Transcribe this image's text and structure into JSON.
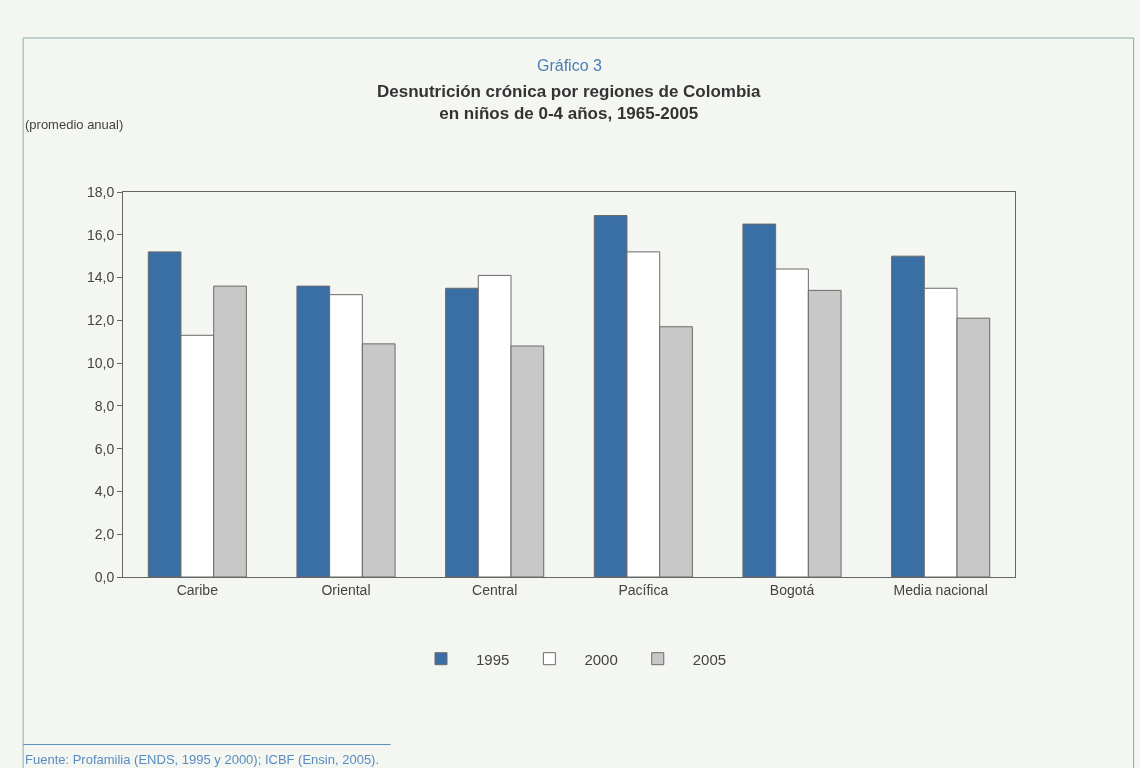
{
  "chart_data": {
    "type": "bar",
    "title": "Gráfico 3",
    "subtitle": "Desnutrición crónica por regiones de Colombia\nen niños de 0-4 años, 1965-2005",
    "ylabel": "(promedio anual)",
    "categories": [
      "Caribe",
      "Oriental",
      "Central",
      "Pacífica",
      "Bogotá",
      "Media nacional"
    ],
    "series": [
      {
        "name": "1995",
        "color": "#3a6fa5",
        "values": [
          15.2,
          13.6,
          13.5,
          16.9,
          16.5,
          15.0
        ]
      },
      {
        "name": "2000",
        "color": "#ffffff",
        "values": [
          11.3,
          13.2,
          14.1,
          15.2,
          14.4,
          13.5
        ]
      },
      {
        "name": "2005",
        "color": "#c8c8c8",
        "values": [
          13.6,
          10.9,
          10.8,
          11.7,
          13.4,
          12.1
        ]
      }
    ],
    "ylim": [
      0,
      18
    ],
    "yticks": [
      {
        "value": 0,
        "label": "0,0"
      },
      {
        "value": 2,
        "label": "2,0"
      },
      {
        "value": 4,
        "label": "4,0"
      },
      {
        "value": 6,
        "label": "6,0"
      },
      {
        "value": 8,
        "label": "8,0"
      },
      {
        "value": 10,
        "label": "10,0"
      },
      {
        "value": 12,
        "label": "12,0"
      },
      {
        "value": 14,
        "label": "14,0"
      },
      {
        "value": 16,
        "label": "16,0"
      },
      {
        "value": 18,
        "label": "18,0"
      }
    ],
    "grid": false,
    "legend": "bottom",
    "annotations": [
      "Fuente: Profamilia (ENDS, 1995 y 2000); ICBF (Ensin, 2005)."
    ]
  }
}
